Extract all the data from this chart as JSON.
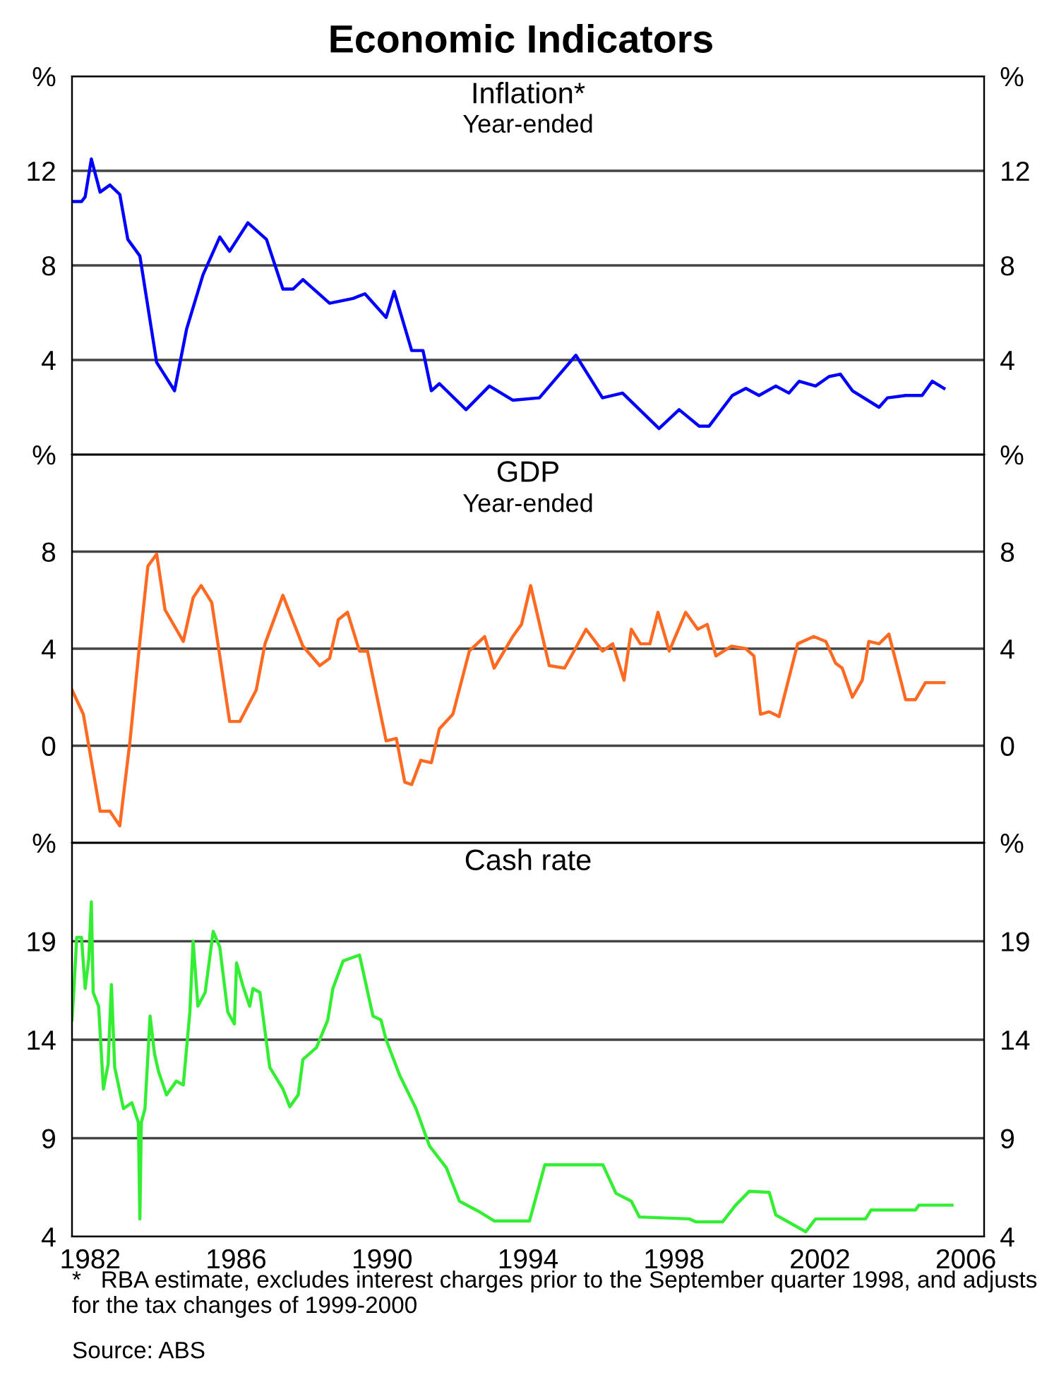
{
  "chart_data": [
    {
      "type": "line",
      "title": "Inflation*",
      "subtitle": "Year-ended",
      "annotations": [
        "Economic Indicators"
      ],
      "x": [
        1982.0,
        1982.26,
        1982.36,
        1982.53,
        1982.77,
        1983.04,
        1983.31,
        1983.53,
        1983.86,
        1984.32,
        1984.81,
        1985.14,
        1985.59,
        1986.05,
        1986.32,
        1986.82,
        1987.33,
        1987.78,
        1988.06,
        1988.33,
        1989.06,
        1989.7,
        1990.03,
        1990.61,
        1990.83,
        1991.31,
        1991.62,
        1991.85,
        1992.07,
        1992.8,
        1993.44,
        1994.08,
        1994.81,
        1995.81,
        1996.54,
        1997.09,
        1998.09,
        1998.64,
        1999.19,
        1999.46,
        2000.1,
        2000.47,
        2000.83,
        2001.29,
        2001.65,
        2001.93,
        2002.38,
        2002.75,
        2003.06,
        2003.39,
        2004.12,
        2004.35,
        2004.85,
        2005.3,
        2005.58,
        2005.9
      ],
      "series": [
        {
          "color": "#0000ff",
          "values": [
            10.7,
            10.7,
            10.9,
            12.5,
            11.1,
            11.4,
            11.0,
            9.1,
            8.4,
            3.9,
            2.7,
            5.3,
            7.6,
            9.2,
            8.6,
            9.8,
            9.1,
            7.0,
            7.0,
            7.4,
            6.4,
            6.6,
            6.8,
            5.8,
            6.9,
            4.4,
            4.4,
            2.7,
            3.0,
            1.9,
            2.9,
            2.3,
            2.4,
            4.2,
            2.4,
            2.6,
            1.1,
            1.9,
            1.2,
            1.2,
            2.5,
            2.8,
            2.5,
            2.9,
            2.6,
            3.1,
            2.9,
            3.3,
            3.4,
            2.7,
            2.0,
            2.4,
            2.5,
            2.5,
            3.1,
            2.8
          ]
        }
      ],
      "xlim": [
        1982,
        2007
      ],
      "ylim": [
        0,
        16
      ],
      "yticks": [
        {
          "value": 0,
          "label": null
        },
        4,
        8,
        12,
        {
          "value": 16,
          "label": "%"
        }
      ],
      "y2lim": [
        0,
        16
      ],
      "y2ticks": [
        {
          "value": 0,
          "label": null
        },
        4,
        8,
        12,
        {
          "value": 16,
          "label": "%"
        }
      ],
      "grid": "y",
      "tick_labels": "y",
      "legend": false
    },
    {
      "type": "line",
      "title": "GDP",
      "subtitle": "Year-ended",
      "x": [
        1982.0,
        1982.31,
        1982.77,
        1983.04,
        1983.31,
        1983.59,
        1983.86,
        1984.08,
        1984.32,
        1984.55,
        1985.05,
        1985.32,
        1985.54,
        1985.83,
        1986.32,
        1986.6,
        1987.05,
        1987.29,
        1987.78,
        1988.33,
        1988.79,
        1989.06,
        1989.3,
        1989.55,
        1989.88,
        1990.1,
        1990.61,
        1990.89,
        1991.12,
        1991.31,
        1991.56,
        1991.85,
        1992.07,
        1992.44,
        1992.89,
        1993.31,
        1993.57,
        1994.08,
        1994.32,
        1994.57,
        1995.08,
        1995.5,
        1996.09,
        1996.54,
        1996.82,
        1997.13,
        1997.33,
        1997.58,
        1997.84,
        1998.06,
        1998.37,
        1998.82,
        1999.15,
        1999.41,
        1999.65,
        2000.07,
        2000.47,
        2000.69,
        2000.87,
        2001.11,
        2001.38,
        2001.89,
        2002.33,
        2002.66,
        2002.93,
        2003.11,
        2003.39,
        2003.66,
        2003.84,
        2004.12,
        2004.39,
        2004.85,
        2005.12,
        2005.39,
        2005.9
      ],
      "series": [
        {
          "color": "#ff6a22",
          "values": [
            2.3,
            1.3,
            -2.7,
            -2.7,
            -3.3,
            0.2,
            4.3,
            7.4,
            7.9,
            5.6,
            4.3,
            6.1,
            6.6,
            5.9,
            1.0,
            1.0,
            2.3,
            4.2,
            6.2,
            4.1,
            3.3,
            3.6,
            5.2,
            5.5,
            3.9,
            3.9,
            0.2,
            0.3,
            -1.5,
            -1.6,
            -0.6,
            -0.7,
            0.7,
            1.3,
            3.9,
            4.5,
            3.2,
            4.5,
            5.0,
            6.6,
            3.3,
            3.2,
            4.8,
            3.9,
            4.2,
            2.7,
            4.8,
            4.2,
            4.2,
            5.5,
            3.9,
            5.5,
            4.8,
            5.0,
            3.7,
            4.1,
            4.0,
            3.7,
            1.3,
            1.4,
            1.2,
            4.2,
            4.5,
            4.3,
            3.4,
            3.2,
            2.0,
            2.7,
            4.3,
            4.2,
            4.6,
            1.9,
            1.9,
            2.6,
            2.6
          ]
        }
      ],
      "xlim": [
        1982,
        2007
      ],
      "ylim": [
        -4,
        12
      ],
      "yticks": [
        {
          "value": -4,
          "label": null
        },
        0,
        4,
        8,
        {
          "value": 12,
          "label": "%"
        }
      ],
      "y2lim": [
        -4,
        12
      ],
      "y2ticks": [
        {
          "value": -4,
          "label": null
        },
        0,
        4,
        8,
        {
          "value": 12,
          "label": "%"
        }
      ],
      "grid": "y",
      "tick_labels": "y",
      "legend": false
    },
    {
      "type": "line",
      "title": "Cash rate",
      "annotations": [
        "*   RBA estimate, excludes interest charges prior to the September quarter 1998, and adjusts for the tax changes of 1999-2000",
        "Source: ABS"
      ],
      "x": [
        1982.0,
        1982.04,
        1982.13,
        1982.26,
        1982.36,
        1982.46,
        1982.53,
        1982.58,
        1982.73,
        1982.86,
        1982.99,
        1983.08,
        1983.17,
        1983.41,
        1983.64,
        1983.82,
        1983.86,
        1983.9,
        1984.0,
        1984.14,
        1984.26,
        1984.37,
        1984.59,
        1984.86,
        1985.05,
        1985.23,
        1985.32,
        1985.45,
        1985.65,
        1985.87,
        1986.05,
        1986.27,
        1986.45,
        1986.51,
        1986.69,
        1986.87,
        1986.96,
        1987.15,
        1987.42,
        1987.78,
        1987.97,
        1988.2,
        1988.33,
        1988.7,
        1989.01,
        1989.15,
        1989.43,
        1989.88,
        1990.25,
        1990.47,
        1990.61,
        1990.98,
        1991.43,
        1991.8,
        1992.26,
        1992.62,
        1993.13,
        1993.57,
        1994.54,
        1994.96,
        1996.55,
        1996.91,
        1997.33,
        1997.55,
        1998.92,
        1999.1,
        1999.83,
        2000.19,
        2000.56,
        2001.11,
        2001.29,
        2002.11,
        2002.38,
        2003.75,
        2003.9,
        2005.12,
        2005.21,
        2006.12
      ],
      "series": [
        {
          "color": "#33ee33",
          "values": [
            15.0,
            16.2,
            19.2,
            19.2,
            16.6,
            18.1,
            21.0,
            16.4,
            15.7,
            11.5,
            12.75,
            16.8,
            12.6,
            10.5,
            10.8,
            9.8,
            4.9,
            9.8,
            10.5,
            15.2,
            13.3,
            12.4,
            11.2,
            11.9,
            11.7,
            15.4,
            19.0,
            15.7,
            16.4,
            19.5,
            18.7,
            15.4,
            14.8,
            17.9,
            16.7,
            15.7,
            16.6,
            16.4,
            12.6,
            11.5,
            10.6,
            11.2,
            13.0,
            13.6,
            15.0,
            16.6,
            18.0,
            18.3,
            15.2,
            15.0,
            14.0,
            12.2,
            10.5,
            8.6,
            7.5,
            5.8,
            5.3,
            4.8,
            4.8,
            7.65,
            7.65,
            6.2,
            5.8,
            5.0,
            4.9,
            4.75,
            4.75,
            5.6,
            6.3,
            6.25,
            5.1,
            4.25,
            4.9,
            4.9,
            5.35,
            5.35,
            5.6,
            5.6
          ]
        }
      ],
      "xlim": [
        1982,
        2007
      ],
      "xticks": [
        {
          "value": 1982.5,
          "label": "1982"
        },
        {
          "value": 1986.5,
          "label": "1986"
        },
        {
          "value": 1990.5,
          "label": "1990"
        },
        {
          "value": 1994.5,
          "label": "1994"
        },
        {
          "value": 1998.5,
          "label": "1998"
        },
        {
          "value": 2002.5,
          "label": "2002"
        },
        {
          "value": 2006.5,
          "label": "2006"
        }
      ],
      "ylim": [
        4,
        24
      ],
      "yticks": [
        4,
        9,
        14,
        19,
        {
          "value": 24,
          "label": "%"
        }
      ],
      "y2lim": [
        4,
        24
      ],
      "y2ticks": [
        4,
        9,
        14,
        19,
        {
          "value": 24,
          "label": "%"
        }
      ],
      "grid": "y",
      "legend": false
    }
  ]
}
